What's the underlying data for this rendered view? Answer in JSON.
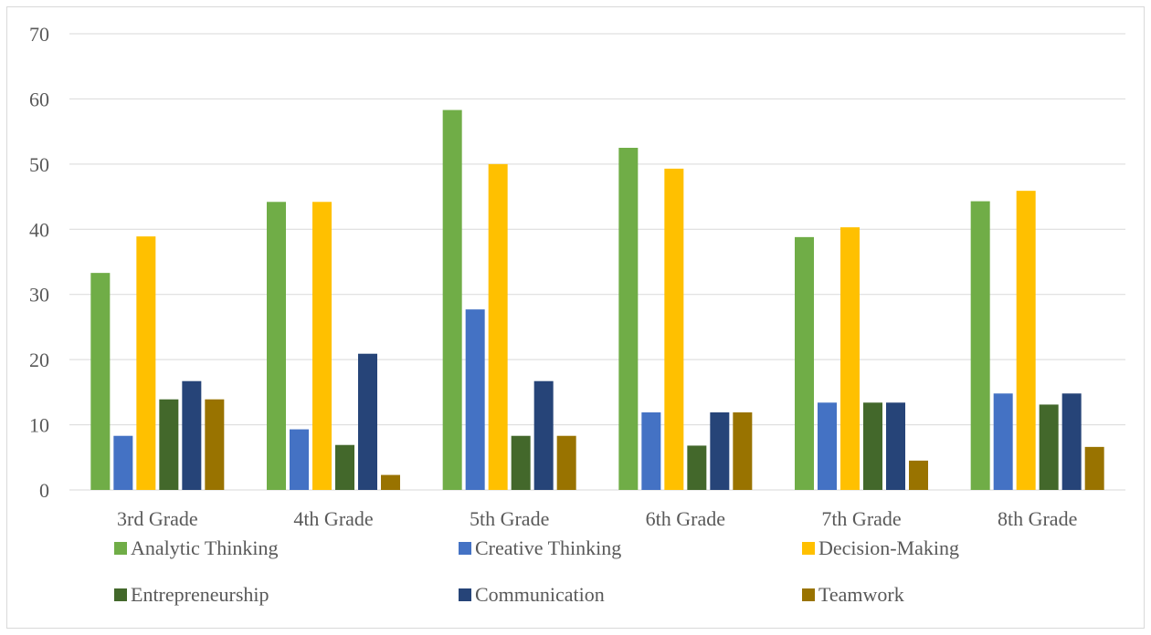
{
  "chart_data": {
    "type": "bar",
    "categories": [
      "3rd Grade",
      "4th Grade",
      "5th Grade",
      "6th Grade",
      "7th Grade",
      "8th Grade"
    ],
    "series": [
      {
        "name": "Analytic Thinking",
        "color": "#70ad47",
        "values": [
          33.3,
          44.2,
          58.3,
          52.5,
          38.8,
          44.3
        ]
      },
      {
        "name": "Creative Thinking",
        "color": "#4472c4",
        "values": [
          8.3,
          9.3,
          27.7,
          11.9,
          13.4,
          14.8
        ]
      },
      {
        "name": "Decision-Making",
        "color": "#ffc000",
        "values": [
          38.9,
          44.2,
          50.0,
          49.3,
          40.3,
          45.9
        ]
      },
      {
        "name": "Entrepreneurship",
        "color": "#43682b",
        "values": [
          13.9,
          6.9,
          8.3,
          6.8,
          13.4,
          13.1
        ]
      },
      {
        "name": "Communication",
        "color": "#264478",
        "values": [
          16.7,
          20.9,
          16.7,
          11.9,
          13.4,
          14.8
        ]
      },
      {
        "name": "Teamwork",
        "color": "#997300",
        "values": [
          13.9,
          2.3,
          8.3,
          11.9,
          4.5,
          6.6
        ]
      }
    ],
    "y_ticks": [
      "0",
      "10",
      "20",
      "30",
      "40",
      "50",
      "60",
      "70"
    ],
    "ylim": [
      0,
      70
    ],
    "grid": true,
    "legend_position": "bottom"
  }
}
